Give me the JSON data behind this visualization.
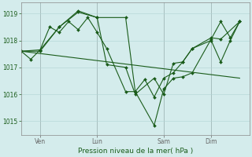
{
  "title": "",
  "xlabel": "Pression niveau de la mer( hPa )",
  "bg_color": "#d4ecec",
  "grid_color": "#b0d4d4",
  "line_color": "#1a5c1a",
  "ylim": [
    1014.5,
    1019.4
  ],
  "yticks": [
    1015,
    1016,
    1017,
    1018,
    1019
  ],
  "xtick_labels": [
    "Ven",
    "Lun",
    "Sam",
    "Dim"
  ],
  "xtick_positions": [
    0.083,
    0.333,
    0.625,
    0.833
  ],
  "xlim": [
    0,
    1.0
  ],
  "series1_x": [
    0.0,
    0.042,
    0.083,
    0.125,
    0.167,
    0.208,
    0.25,
    0.292,
    0.333,
    0.375,
    0.458,
    0.5,
    0.542,
    0.583,
    0.625,
    0.667,
    0.708,
    0.75,
    0.833,
    0.875,
    0.958
  ],
  "series1_y": [
    1017.6,
    1017.3,
    1017.65,
    1018.5,
    1018.3,
    1018.7,
    1018.4,
    1018.85,
    1018.3,
    1017.7,
    1016.1,
    1016.1,
    1016.55,
    1015.9,
    1016.6,
    1016.8,
    1017.2,
    1017.7,
    1018.1,
    1018.05,
    1018.7
  ],
  "series2_x": [
    0.0,
    0.083,
    0.167,
    0.25,
    0.333,
    0.458,
    0.5,
    0.583,
    0.625,
    0.667,
    0.708,
    0.75,
    0.833,
    0.875,
    0.917,
    0.958
  ],
  "series2_y": [
    1017.6,
    1017.65,
    1018.5,
    1019.1,
    1018.85,
    1018.85,
    1016.1,
    1014.85,
    1016.2,
    1016.6,
    1016.65,
    1016.8,
    1018.05,
    1018.7,
    1018.1,
    1018.7
  ],
  "series3_x": [
    0.0,
    0.083,
    0.167,
    0.25,
    0.333,
    0.375,
    0.458,
    0.5,
    0.583,
    0.625,
    0.667,
    0.708,
    0.75,
    0.833,
    0.875,
    0.917,
    0.958
  ],
  "series3_y": [
    1017.6,
    1017.6,
    1018.5,
    1019.05,
    1018.85,
    1017.1,
    1017.0,
    1016.0,
    1016.6,
    1016.0,
    1017.15,
    1017.2,
    1017.7,
    1018.0,
    1017.2,
    1018.0,
    1018.7
  ],
  "trend_x": [
    0.0,
    0.958
  ],
  "trend_y": [
    1017.6,
    1016.6
  ],
  "vline_positions": [
    0.083,
    0.333,
    0.625,
    0.833
  ]
}
